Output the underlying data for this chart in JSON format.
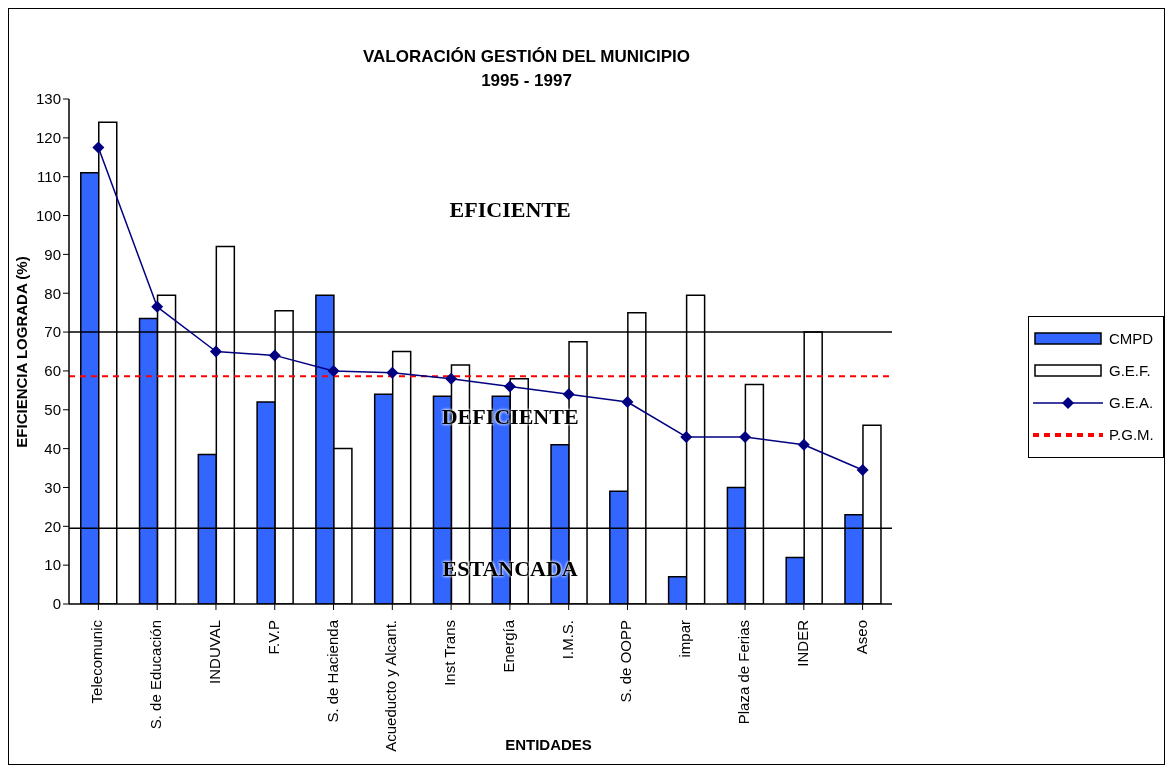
{
  "chart_data": {
    "type": "bar",
    "title": "VALORACIÓN GESTIÓN DEL MUNICIPIO",
    "subtitle": "1995 - 1997",
    "xlabel": "ENTIDADES",
    "ylabel": "EFICIENCIA LOGRADA (%)",
    "categories": [
      "Telecomunic",
      "S. de Educación",
      "INDUVAL",
      "F.V.P",
      "S. de Hacienda",
      "Acueducto y Alcant.",
      "Inst Trans",
      "Energía",
      "I.M.S.",
      "S. de OOPP",
      "impar",
      "Plaza de Ferias",
      "INDER",
      "Aseo"
    ],
    "series": [
      {
        "name": "CMPD",
        "color": "#3366ff",
        "values": [
          111,
          73.5,
          38.5,
          52,
          79.5,
          54,
          53.5,
          53.5,
          41,
          29,
          7,
          30,
          12,
          23
        ]
      },
      {
        "name": "G.E.F.",
        "color": "#ffffff",
        "values": [
          124,
          79.5,
          92,
          75.5,
          40,
          65,
          61.5,
          58,
          67.5,
          75,
          79.5,
          56.5,
          70,
          46
        ]
      },
      {
        "name": "G.E.A.",
        "type": "line",
        "color": "#000080",
        "marker": "diamond",
        "values": [
          117.5,
          76.5,
          65,
          64,
          60,
          59.5,
          58,
          56,
          54,
          52,
          43,
          43,
          41,
          34.5
        ]
      }
    ],
    "ylim": [
      0,
      130
    ],
    "yticks": [
      0,
      10,
      20,
      30,
      40,
      50,
      60,
      70,
      80,
      90,
      100,
      110,
      120,
      130
    ],
    "legend": "right",
    "ref_lines": [
      {
        "axis": "y",
        "value": 70,
        "color": "#000000",
        "line_style": "solid"
      },
      {
        "axis": "y",
        "value": 19.5,
        "color": "#000000",
        "line_style": "solid"
      },
      {
        "axis": "y",
        "value": 58.6,
        "label": "P.G.M.",
        "color": "#ff0000",
        "line_style": "dashed"
      }
    ],
    "annotations": [
      "EFICIENTE",
      "DEFICIENTE",
      "ESTANCADA"
    ]
  }
}
